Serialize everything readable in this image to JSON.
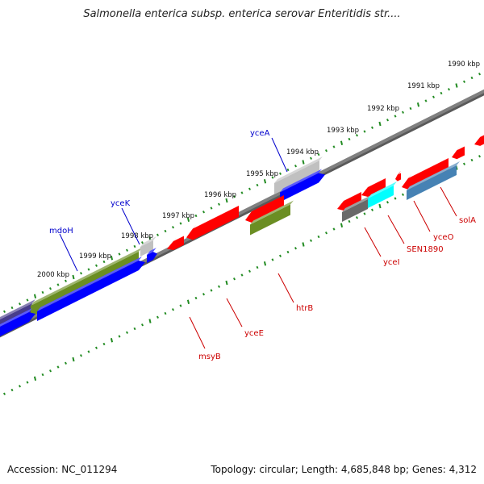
{
  "title": "Salmonella enterica subsp. enterica serovar Enteritidis str....",
  "footer": {
    "accession": "Accession: NC_011294",
    "summary": "Topology: circular; Length: 4,685,848 bp; Genes: 4,312"
  },
  "scale_labels": [
    "1990 kbp",
    "1991 kbp",
    "1992 kbp",
    "1993 kbp",
    "1994 kbp",
    "1995 kbp",
    "1996 kbp",
    "1997 kbp",
    "1998 kbp",
    "1999 kbp",
    "2000 kbp"
  ],
  "forward_labels": [
    "yceA",
    "yceK",
    "mdoH"
  ],
  "reverse_labels": [
    "solA",
    "yceO",
    "SEN1890",
    "yceI",
    "htrB",
    "yceE",
    "msyB"
  ],
  "colors": {
    "forward_label": "#0000cc",
    "reverse_label": "#cc0000",
    "backbone": "#808080",
    "ticks": "#228b22",
    "red": "#ff0000",
    "blue": "#0000ff",
    "olive": "#6b8e23",
    "gray": "#c0c0c0",
    "dark_slate": "#483d8b",
    "dim_gray": "#696969",
    "cyan": "#00ffff",
    "steel_blue": "#4682b4"
  }
}
